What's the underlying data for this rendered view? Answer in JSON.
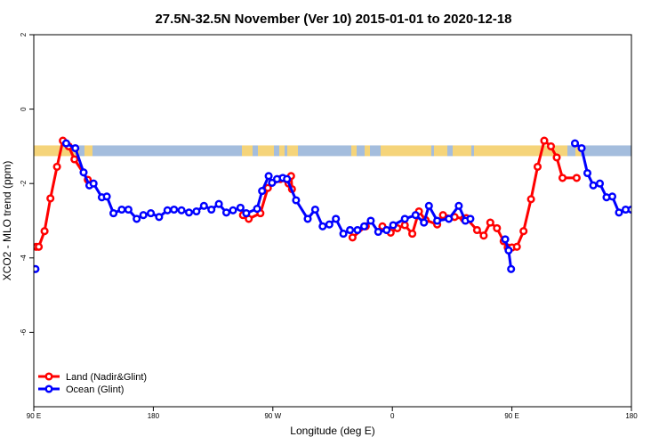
{
  "chart_data": {
    "type": "line",
    "title": "27.5N-32.5N November (Ver 10)   2015-01-01 to 2020-12-18",
    "xlabel": "Longitude (deg E)",
    "ylabel": "XCO2 - MLO trend (ppm)",
    "xlim": [
      90,
      450
    ],
    "ylim": [
      -8,
      2
    ],
    "x_ticks": [
      {
        "value": 90,
        "label": "90 E"
      },
      {
        "value": 162,
        "label": "180"
      },
      {
        "value": 234,
        "label": "90 W"
      },
      {
        "value": 306,
        "label": "0"
      },
      {
        "value": 378,
        "label": "90 E"
      },
      {
        "value": 450,
        "label": "180"
      }
    ],
    "y_ticks": [
      {
        "value": 2,
        "label": "2"
      },
      {
        "value": 0,
        "label": "0"
      },
      {
        "value": -2,
        "label": "-2"
      },
      {
        "value": -4,
        "label": "-4"
      },
      {
        "value": -6,
        "label": "-6"
      }
    ],
    "grid": false,
    "legend_position": "bottom-left",
    "land_ocean_strip": {
      "y": -1.12,
      "land_color": "#f5d47a",
      "ocean_color": "#a4bddd"
    },
    "series": [
      {
        "name": "Land (Nadir&Glint)",
        "color": "#ff0000",
        "x": [
          91.5,
          93.0,
          96.5,
          100.0,
          104.0,
          107.5,
          111.0,
          114.5,
          122.5,
          216.0,
          219.5,
          226.5,
          231.0,
          238.5,
          243.5,
          245.0,
          245.5,
          282.0,
          290.0,
          300.0,
          305.0,
          309.0,
          313.5,
          318.0,
          322.0,
          326.0,
          333.0,
          336.5,
          343.5,
          349.0,
          350.5,
          357.0,
          361.0,
          365.0,
          369.0,
          373.0,
          375.5,
          378.0,
          381.0,
          385.0,
          389.5,
          393.5,
          397.5,
          401.5,
          405.0,
          408.5,
          417.0
        ],
        "y": [
          -3.7,
          -3.7,
          -3.28,
          -2.4,
          -1.55,
          -0.85,
          -1.0,
          -1.35,
          -1.9,
          -2.85,
          -2.95,
          -2.8,
          -2.12,
          -1.88,
          -2.0,
          -1.8,
          -2.15,
          -3.45,
          -3.15,
          -3.15,
          -3.32,
          -3.2,
          -3.12,
          -3.35,
          -2.75,
          -2.98,
          -3.1,
          -2.85,
          -2.9,
          -2.95,
          -2.93,
          -3.25,
          -3.4,
          -3.05,
          -3.2,
          -3.55,
          -3.72,
          -3.72,
          -3.7,
          -3.28,
          -2.42,
          -1.55,
          -0.85,
          -1.0,
          -1.3,
          -1.85,
          -1.85
        ]
      },
      {
        "name": "Ocean (Glint)",
        "color": "#0000ff",
        "x": [
          91.0,
          109.5,
          115.0,
          120.0,
          123.5,
          126.0,
          131.0,
          134.0,
          138.0,
          143.0,
          147.0,
          152.0,
          156.0,
          160.5,
          165.5,
          170.5,
          174.5,
          179.0,
          183.5,
          188.0,
          192.5,
          197.0,
          201.5,
          206.0,
          210.0,
          214.5,
          218.0,
          224.5,
          227.5,
          231.5,
          233.5,
          236.5,
          240.0,
          242.5,
          248.0,
          255.0,
          259.5,
          264.0,
          268.0,
          272.0,
          276.5,
          280.5,
          285.0,
          289.0,
          293.0,
          297.5,
          302.5,
          306.5,
          313.5,
          320.0,
          325.0,
          328.0,
          333.0,
          340.0,
          346.0,
          350.0,
          353.0,
          374.0,
          376.0,
          377.5,
          416.0,
          420.0,
          423.5,
          427.0,
          431.0,
          435.0,
          438.5,
          442.5,
          446.5,
          450.0,
          454.0
        ],
        "y": [
          -4.3,
          -0.92,
          -1.05,
          -1.7,
          -2.05,
          -2.0,
          -2.37,
          -2.35,
          -2.8,
          -2.7,
          -2.7,
          -2.95,
          -2.85,
          -2.8,
          -2.9,
          -2.72,
          -2.7,
          -2.72,
          -2.78,
          -2.75,
          -2.6,
          -2.7,
          -2.55,
          -2.78,
          -2.72,
          -2.65,
          -2.8,
          -2.68,
          -2.2,
          -1.8,
          -1.98,
          -1.88,
          -1.85,
          -1.88,
          -2.45,
          -2.95,
          -2.7,
          -3.15,
          -3.1,
          -2.95,
          -3.35,
          -3.25,
          -3.25,
          -3.15,
          -3.0,
          -3.3,
          -3.25,
          -3.12,
          -2.95,
          -2.85,
          -3.05,
          -2.6,
          -3.0,
          -2.95,
          -2.6,
          -3.0,
          -2.95,
          -3.5,
          -3.8,
          -4.3,
          -0.92,
          -1.05,
          -1.72,
          -2.05,
          -2.0,
          -2.37,
          -2.35,
          -2.78,
          -2.7,
          -2.7,
          -2.95
        ]
      }
    ]
  }
}
